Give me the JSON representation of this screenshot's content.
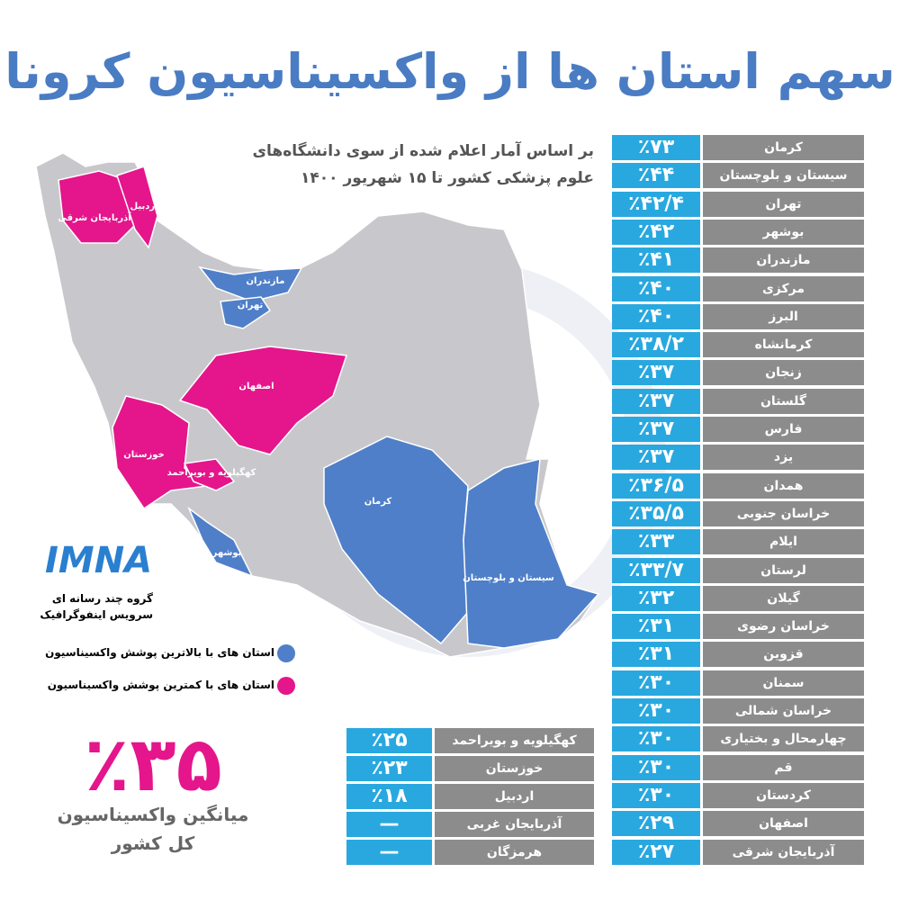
{
  "header": {
    "title": "سهم استان ها از واکسیناسیون کرونا",
    "subtitle": [
      "بر اساس آمار اعلام شده از سوی دانشگاه‌های",
      "علوم پزشکی کشور تا ۱۵ شهریور ۱۴۰۰"
    ]
  },
  "provinces": {
    "rows": [
      {
        "name": "کرمان",
        "value": "٪۷۳"
      },
      {
        "name": "سیستان و بلوچستان",
        "value": "٪۴۴"
      },
      {
        "name": "تهران",
        "value": "٪۴۲/۴"
      },
      {
        "name": "بوشهر",
        "value": "٪۴۲"
      },
      {
        "name": "مازندران",
        "value": "٪۴۱"
      },
      {
        "name": "مرکزی",
        "value": "٪۴۰"
      },
      {
        "name": "البرز",
        "value": "٪۴۰"
      },
      {
        "name": "کرمانشاه",
        "value": "٪۳۸/۲"
      },
      {
        "name": "زنجان",
        "value": "٪۳۷"
      },
      {
        "name": "گلستان",
        "value": "٪۳۷"
      },
      {
        "name": "فارس",
        "value": "٪۳۷"
      },
      {
        "name": "یزد",
        "value": "٪۳۷"
      },
      {
        "name": "همدان",
        "value": "٪۳۶/۵"
      },
      {
        "name": "خراسان جنوبی",
        "value": "٪۳۵/۵"
      },
      {
        "name": "ایلام",
        "value": "٪۳۳"
      },
      {
        "name": "لرستان",
        "value": "٪۳۳/۷"
      },
      {
        "name": "گیلان",
        "value": "٪۳۲"
      },
      {
        "name": "خراسان رضوی",
        "value": "٪۳۱"
      },
      {
        "name": "قزوین",
        "value": "٪۳۱"
      },
      {
        "name": "سمنان",
        "value": "٪۳۰"
      },
      {
        "name": "خراسان شمالی",
        "value": "٪۳۰"
      },
      {
        "name": "چهارمحال و بختیاری",
        "value": "٪۳۰"
      },
      {
        "name": "قم",
        "value": "٪۳۰"
      },
      {
        "name": "کردستان",
        "value": "٪۳۰"
      },
      {
        "name": "اصفهان",
        "value": "٪۲۹"
      },
      {
        "name": "آذربایجان شرقی",
        "value": "٪۲۷"
      }
    ]
  },
  "lowest": {
    "rows": [
      {
        "name": "کهگیلویه و بویراحمد",
        "value": "٪۲۵"
      },
      {
        "name": "خوزستان",
        "value": "٪۲۳"
      },
      {
        "name": "اردبیل",
        "value": "٪۱۸"
      },
      {
        "name": "آذربایجان غربی",
        "value": "—"
      },
      {
        "name": "هرمزگان",
        "value": "—"
      }
    ]
  },
  "average": {
    "value": "٪۳۵",
    "label": [
      "میانگین واکسیناسیون",
      "کل کشور"
    ]
  },
  "logo": {
    "name": "IMNA",
    "lines": [
      "گروه چند رسانه ای",
      "سرویس اینفوگرافیک"
    ]
  },
  "legend": [
    {
      "label": "استان های با بالاترین پوشش واکسیناسیون"
    },
    {
      "label": "استان های با کمترین پوشش واکسیناسیون"
    }
  ],
  "map": {
    "labels": [
      "آذربایجان شرقی",
      "اردبیل",
      "مازندران",
      "تهران",
      "اصفهان",
      "خوزستان",
      "کهگیلویه و بویراحمد",
      "بوشهر",
      "کرمان",
      "سیستان و بلوچستان"
    ]
  }
}
